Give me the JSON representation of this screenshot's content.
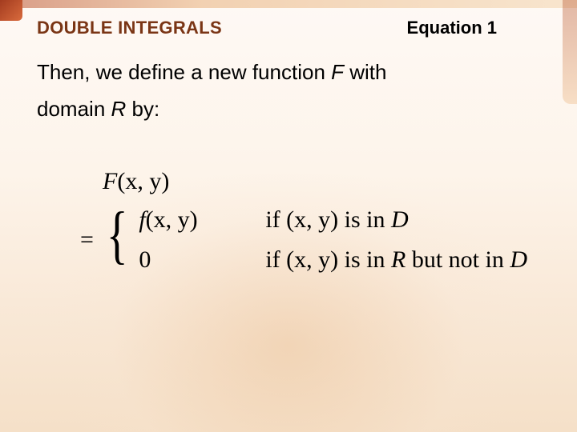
{
  "colors": {
    "section_title": "#7a3515",
    "text": "#000000",
    "bg_top": "#fef9f5",
    "bg_bottom": "#f5e0c8",
    "accent_dark": "#a33b1f",
    "accent_light": "#e8b07a"
  },
  "typography": {
    "header_fontsize_pt": 17,
    "body_fontsize_pt": 20,
    "formula_fontsize_pt": 23,
    "header_font": "Arial",
    "formula_font": "Times New Roman"
  },
  "header": {
    "section_title": "DOUBLE INTEGRALS",
    "equation_label": "Equation 1"
  },
  "body": {
    "line1_a": "Then, we define a new function ",
    "line1_F": "F",
    "line1_b": " with",
    "line2_a": "domain ",
    "line2_R": "R",
    "line2_b": " by:"
  },
  "formula": {
    "lhs_fn": "F",
    "lhs_args": "(x, y)",
    "case1_fn": "f",
    "case1_args": "(x, y)",
    "case1_cond_if": "if ",
    "case1_cond_args": "(x, y)",
    "case1_cond_isin": " is in ",
    "case1_cond_set": "D",
    "case2_value": "0",
    "case2_cond_if": "if ",
    "case2_cond_args": "(x, y)",
    "case2_cond_isin": " is in ",
    "case2_cond_setR": "R",
    "case2_cond_butnot": " but not in ",
    "case2_cond_setD": "D"
  }
}
